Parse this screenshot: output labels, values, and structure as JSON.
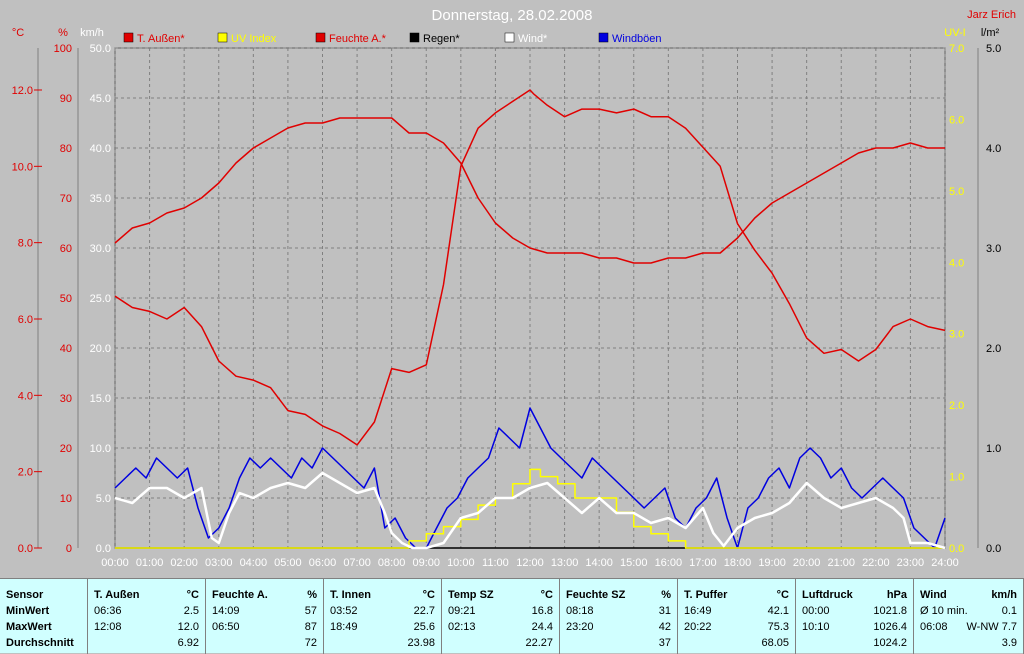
{
  "header": {
    "title": "Donnerstag, 28.02.2008",
    "author": "Jarz Erich"
  },
  "colors": {
    "background": "#c0c0c0",
    "plot": "#c0c0c0",
    "red": "#e00000",
    "yellow": "#ffff00",
    "blue": "#0000e0",
    "white": "#ffffff",
    "grid": "#808080",
    "stats_bg": "#d0ffff"
  },
  "legend": [
    {
      "label": "T. Außen*",
      "color": "#e00000"
    },
    {
      "label": "UV Index",
      "color": "#ffff00"
    },
    {
      "label": "Feuchte A.*",
      "color": "#e00000"
    },
    {
      "label": "Regen*",
      "color": "#000000"
    },
    {
      "label": "Wind*",
      "color": "#ffffff"
    },
    {
      "label": "Windböen",
      "color": "#0000e0"
    }
  ],
  "axes": {
    "temp_unit": "°C",
    "hum_unit": "%",
    "wind_unit": "km/h",
    "uv_unit": "UV-I",
    "rain_unit": "l/m²",
    "temp_ticks": [
      "12.0",
      "10.0",
      "8.0",
      "6.0",
      "4.0",
      "2.0",
      "0.0"
    ],
    "hum_ticks": [
      "100",
      "90",
      "80",
      "70",
      "60",
      "50",
      "40",
      "30",
      "20",
      "10",
      "0"
    ],
    "wind_ticks": [
      "50.0",
      "45.0",
      "40.0",
      "35.0",
      "30.0",
      "25.0",
      "20.0",
      "15.0",
      "10.0",
      "5.0",
      "0.0"
    ],
    "uv_ticks": [
      "7.0",
      "6.0",
      "5.0",
      "4.0",
      "3.0",
      "2.0",
      "1.0",
      "0.0"
    ],
    "rain_ticks": [
      "5.0",
      "4.0",
      "3.0",
      "2.0",
      "1.0",
      "0.0"
    ],
    "x_ticks": [
      "00:00",
      "01:00",
      "02:00",
      "03:00",
      "04:00",
      "05:00",
      "06:00",
      "07:00",
      "08:00",
      "09:00",
      "10:00",
      "11:00",
      "12:00",
      "13:00",
      "14:00",
      "15:00",
      "16:00",
      "17:00",
      "18:00",
      "19:00",
      "20:00",
      "21:00",
      "22:00",
      "23:00",
      "24:00"
    ]
  },
  "chart_data": {
    "type": "line",
    "title": "Donnerstag, 28.02.2008",
    "x_range_hours": [
      0,
      24
    ],
    "ylim_temp": [
      0,
      13.1
    ],
    "ylim_hum": [
      0,
      100
    ],
    "ylim_wind": [
      0,
      50
    ],
    "ylim_uv": [
      0,
      7
    ],
    "ylim_rain": [
      0,
      5
    ],
    "grid": true,
    "legend_position": "top",
    "series": [
      {
        "name": "T. Außen*",
        "axis": "temp",
        "color": "#e00000",
        "x": [
          0,
          0.5,
          1,
          1.5,
          2,
          2.5,
          3,
          3.5,
          4,
          4.5,
          5,
          5.5,
          6,
          6.5,
          7,
          7.5,
          8,
          8.5,
          9,
          9.5,
          10,
          10.5,
          11,
          11.5,
          12,
          12.1,
          12.5,
          13,
          13.5,
          14,
          14.5,
          15,
          15.5,
          16,
          16.5,
          17,
          17.5,
          18,
          18.5,
          19,
          19.5,
          20,
          20.5,
          21,
          21.5,
          22,
          22.5,
          23,
          23.5,
          24
        ],
        "y": [
          6.6,
          6.3,
          6.2,
          6.0,
          6.3,
          5.8,
          4.9,
          4.5,
          4.4,
          4.2,
          3.6,
          3.5,
          3.2,
          3.0,
          2.7,
          3.3,
          4.7,
          4.6,
          4.8,
          6.9,
          10.0,
          11.0,
          11.4,
          11.7,
          12.0,
          11.9,
          11.6,
          11.3,
          11.5,
          11.5,
          11.4,
          11.5,
          11.3,
          11.3,
          11.0,
          10.5,
          10.0,
          8.5,
          7.8,
          7.2,
          6.4,
          5.5,
          5.1,
          5.2,
          4.9,
          5.2,
          5.8,
          6.0,
          5.8,
          5.7
        ]
      },
      {
        "name": "Feuchte A.*",
        "axis": "hum",
        "color": "#e00000",
        "x": [
          0,
          0.5,
          1,
          1.5,
          2,
          2.5,
          3,
          3.5,
          4,
          4.5,
          5,
          5.5,
          6,
          6.5,
          7,
          7.5,
          8,
          8.5,
          9,
          9.5,
          10,
          10.5,
          11,
          11.5,
          12,
          12.5,
          13,
          13.5,
          14,
          14.5,
          15,
          15.5,
          16,
          16.5,
          17,
          17.5,
          18,
          18.5,
          19,
          19.5,
          20,
          20.5,
          21,
          21.5,
          22,
          22.5,
          23,
          23.5,
          24
        ],
        "y": [
          61,
          64,
          65,
          67,
          68,
          70,
          73,
          77,
          80,
          82,
          84,
          85,
          85,
          86,
          86,
          86,
          86,
          83,
          83,
          81,
          77,
          70,
          65,
          62,
          60,
          59,
          59,
          59,
          58,
          58,
          57,
          57,
          58,
          58,
          59,
          59,
          62,
          66,
          69,
          71,
          73,
          75,
          77,
          79,
          80,
          80,
          81,
          80,
          80
        ]
      },
      {
        "name": "UV Index",
        "axis": "uv",
        "color": "#ffff00",
        "x": [
          0,
          8.0,
          8.5,
          9.0,
          9.5,
          10.0,
          10.5,
          11.0,
          11.5,
          12.0,
          12.3,
          12.8,
          13.3,
          14.0,
          14.5,
          15.0,
          15.5,
          16.0,
          16.5,
          24
        ],
        "y": [
          0,
          0,
          0.1,
          0.2,
          0.3,
          0.4,
          0.6,
          0.7,
          0.9,
          1.1,
          1.0,
          0.9,
          0.7,
          0.7,
          0.5,
          0.3,
          0.2,
          0.1,
          0,
          0
        ]
      },
      {
        "name": "Regen*",
        "axis": "rain",
        "color": "#000000",
        "x": [
          0,
          24
        ],
        "y": [
          0,
          0
        ]
      },
      {
        "name": "Wind*",
        "axis": "wind",
        "color": "#ffffff",
        "x": [
          0,
          0.5,
          1,
          1.5,
          2,
          2.5,
          2.8,
          3.0,
          3.3,
          3.6,
          4,
          4.5,
          5,
          5.5,
          6,
          6.5,
          7,
          7.5,
          7.8,
          8.0,
          8.3,
          8.6,
          9.0,
          9.5,
          10,
          10.5,
          11,
          11.5,
          12,
          12.5,
          13,
          13.5,
          14,
          14.5,
          15,
          15.5,
          16,
          16.5,
          17,
          17.3,
          17.6,
          18,
          18.5,
          19,
          19.5,
          20,
          20.5,
          21,
          21.5,
          22,
          22.5,
          22.8,
          23.0,
          23.5,
          24
        ],
        "y": [
          5,
          4.5,
          6,
          6,
          5,
          6,
          1.0,
          0.5,
          3.5,
          5.5,
          5,
          6,
          6.5,
          6,
          7.5,
          6.5,
          5.5,
          6,
          3.5,
          1.5,
          0.5,
          0,
          0,
          0.5,
          3,
          3.5,
          5,
          5,
          6,
          6.5,
          5,
          3.5,
          5,
          3.5,
          3.5,
          2.5,
          3,
          2,
          4,
          1.5,
          0.2,
          2,
          3,
          3.5,
          4.5,
          6.5,
          5,
          4,
          4.5,
          5,
          4,
          3,
          0.5,
          0.5,
          0
        ]
      },
      {
        "name": "Windböen",
        "axis": "wind",
        "color": "#0000e0",
        "x": [
          0,
          0.3,
          0.6,
          0.9,
          1.2,
          1.5,
          1.8,
          2.1,
          2.4,
          2.7,
          3.0,
          3.3,
          3.6,
          3.9,
          4.2,
          4.5,
          4.8,
          5.1,
          5.4,
          5.7,
          6.0,
          6.3,
          6.6,
          6.9,
          7.2,
          7.5,
          7.8,
          8.1,
          8.4,
          8.7,
          9.0,
          9.3,
          9.6,
          9.9,
          10.2,
          10.5,
          10.8,
          11.1,
          11.4,
          11.7,
          12.0,
          12.3,
          12.6,
          12.9,
          13.2,
          13.5,
          13.8,
          14.1,
          14.4,
          14.7,
          15.0,
          15.3,
          15.6,
          15.9,
          16.2,
          16.5,
          16.8,
          17.1,
          17.4,
          17.7,
          18.0,
          18.3,
          18.6,
          18.9,
          19.2,
          19.5,
          19.8,
          20.1,
          20.4,
          20.7,
          21.0,
          21.3,
          21.6,
          21.9,
          22.2,
          22.5,
          22.8,
          23.1,
          23.4,
          23.7,
          24.0
        ],
        "y": [
          6,
          7,
          8,
          7,
          9,
          8,
          7,
          8,
          4,
          1,
          2,
          4,
          7,
          9,
          8,
          9,
          8,
          7,
          9,
          8,
          10,
          9,
          8,
          7,
          6,
          8,
          2,
          3,
          1,
          0,
          0,
          2,
          4,
          5,
          7,
          8,
          9,
          12,
          11,
          10,
          14,
          12,
          10,
          9,
          8,
          7,
          9,
          8,
          7,
          6,
          5,
          4,
          5,
          6,
          3,
          2,
          4,
          5,
          7,
          3,
          0,
          4,
          5,
          7,
          8,
          6,
          9,
          10,
          9,
          7,
          8,
          6,
          5,
          6,
          7,
          6,
          5,
          2,
          1,
          0,
          3
        ]
      }
    ]
  },
  "stats": {
    "row_labels": [
      "Sensor",
      "MinWert",
      "MaxWert",
      "Durchschnitt"
    ],
    "columns": [
      {
        "name": "T. Außen",
        "unit": "°C",
        "min_time": "06:36",
        "min_val": "2.5",
        "max_time": "12:08",
        "max_val": "12.0",
        "avg": "6.92"
      },
      {
        "name": "Feuchte A.",
        "unit": "%",
        "min_time": "14:09",
        "min_val": "57",
        "max_time": "06:50",
        "max_val": "87",
        "avg": "72"
      },
      {
        "name": "T. Innen",
        "unit": "°C",
        "min_time": "03:52",
        "min_val": "22.7",
        "max_time": "18:49",
        "max_val": "25.6",
        "avg": "23.98"
      },
      {
        "name": "Temp SZ",
        "unit": "°C",
        "min_time": "09:21",
        "min_val": "16.8",
        "max_time": "02:13",
        "max_val": "24.4",
        "avg": "22.27"
      },
      {
        "name": "Feuchte SZ",
        "unit": "%",
        "min_time": "08:18",
        "min_val": "31",
        "max_time": "23:20",
        "max_val": "42",
        "avg": "37"
      },
      {
        "name": "T. Puffer",
        "unit": "°C",
        "min_time": "16:49",
        "min_val": "42.1",
        "max_time": "20:22",
        "max_val": "75.3",
        "avg": "68.05"
      },
      {
        "name": "Luftdruck",
        "unit": "hPa",
        "min_time": "00:00",
        "min_val": "1021.8",
        "max_time": "10:10",
        "max_val": "1026.4",
        "avg": "1024.2"
      },
      {
        "name": "Wind",
        "unit": "km/h",
        "min_time": "Ø 10 min.",
        "min_val": "0.1",
        "max_time": "06:08",
        "max_val": "W-NW 7.7",
        "avg": "3.9"
      }
    ]
  }
}
